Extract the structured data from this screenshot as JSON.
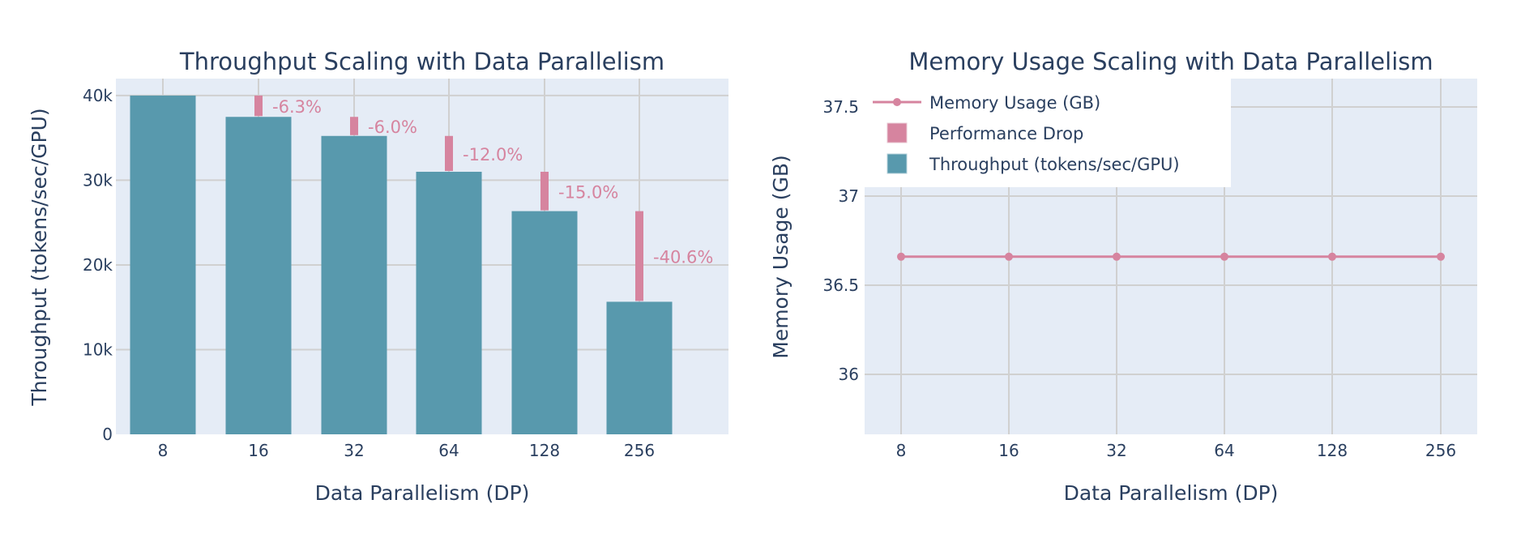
{
  "colors": {
    "throughput": "#5899ad",
    "drop": "#d6849f",
    "memory": "#d6849f",
    "plot_bg": "#e5ecf6",
    "grid": "#d0d0d0",
    "text": "#2a3f5f",
    "paper_bg": "#ffffff"
  },
  "chart_data": [
    {
      "type": "bar",
      "title": "Throughput Scaling with Data Parallelism",
      "xlabel": "Data Parallelism (DP)",
      "ylabel": "Throughput (tokens/sec/GPU)",
      "categories": [
        "8",
        "16",
        "32",
        "64",
        "128",
        "256"
      ],
      "ylim": [
        0,
        42000
      ],
      "yticks": [
        0,
        10000,
        20000,
        30000,
        40000
      ],
      "ytick_labels": [
        "0",
        "10k",
        "20k",
        "30k",
        "40k"
      ],
      "grid": true,
      "series": [
        {
          "name": "Throughput (tokens/sec/GPU)",
          "type": "bar",
          "values": [
            40000,
            37480,
            35230,
            31000,
            26350,
            15650
          ]
        },
        {
          "name": "Performance Drop",
          "type": "bar",
          "base": [
            null,
            40000,
            37480,
            35230,
            31000,
            26350
          ],
          "values": [
            null,
            37480,
            35230,
            31000,
            26350,
            15650
          ],
          "labels": [
            "",
            "-6.3%",
            "-6.0%",
            "-12.0%",
            "-15.0%",
            "-40.6%"
          ]
        }
      ]
    },
    {
      "type": "line",
      "title": "Memory Usage Scaling with Data Parallelism",
      "xlabel": "Data Parallelism (DP)",
      "ylabel": "Memory Usage (GB)",
      "categories": [
        "8",
        "16",
        "32",
        "64",
        "128",
        "256"
      ],
      "ylim": [
        35.66,
        37.65
      ],
      "yticks": [
        36,
        36.5,
        37,
        37.5
      ],
      "ytick_labels": [
        "36",
        "36.5",
        "37",
        "37.5"
      ],
      "grid": true,
      "series": [
        {
          "name": "Memory Usage (GB)",
          "type": "line+markers",
          "values": [
            36.66,
            36.66,
            36.66,
            36.66,
            36.66,
            36.66
          ]
        }
      ]
    }
  ],
  "legend": {
    "position": "top-left of right subplot",
    "items": [
      {
        "label": "Memory Usage (GB)",
        "symbol": "line-marker"
      },
      {
        "label": "Performance Drop",
        "symbol": "square-drop"
      },
      {
        "label": "Throughput (tokens/sec/GPU)",
        "symbol": "square-throughput"
      }
    ]
  }
}
